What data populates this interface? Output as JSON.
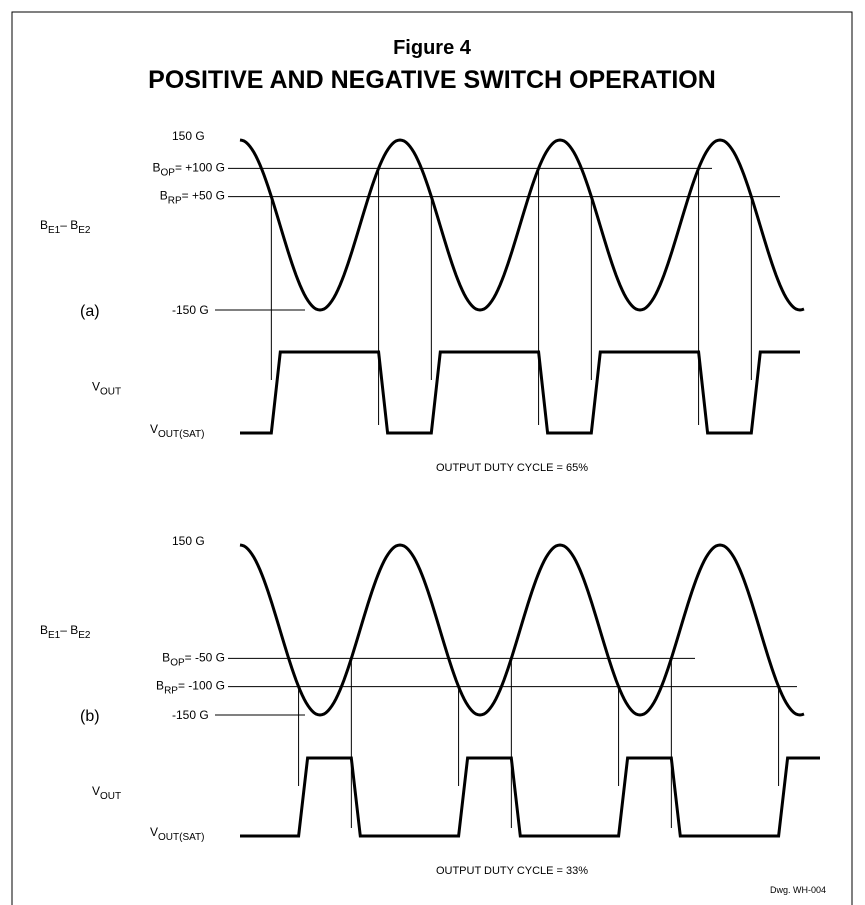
{
  "figure": "Figure 4",
  "title": "POSITIVE AND NEGATIVE SWITCH OPERATION",
  "panels": [
    {
      "label": "(a)",
      "max": "150 G",
      "min": "-150 G",
      "op": {
        "symbol": "B",
        "sub": "OP",
        "text": "= +100 G"
      },
      "rp": {
        "symbol": "B",
        "sub": "RP",
        "text": "= +50 G"
      },
      "field": {
        "symbol": "B",
        "sub1": "E1",
        "mid": "– B",
        "sub2": "E2"
      },
      "vout": {
        "symbol": "V",
        "sub": "OUT"
      },
      "vsat": {
        "symbol": "V",
        "sub": "OUT(SAT)"
      },
      "caption": "OUTPUT DUTY CYCLE = 65%"
    },
    {
      "label": "(b)",
      "max": "150 G",
      "min": "-150 G",
      "op": {
        "symbol": "B",
        "sub": "OP",
        "text": "= -50 G"
      },
      "rp": {
        "symbol": "B",
        "sub": "RP",
        "text": "= -100 G"
      },
      "field": {
        "symbol": "B",
        "sub1": "E1",
        "mid": "– B",
        "sub2": "E2"
      },
      "vout": {
        "symbol": "V",
        "sub": "OUT"
      },
      "vsat": {
        "symbol": "V",
        "sub": "OUT(SAT)"
      },
      "caption": "OUTPUT DUTY CYCLE = 33%"
    }
  ],
  "drawing": "Dwg. WH-004"
}
